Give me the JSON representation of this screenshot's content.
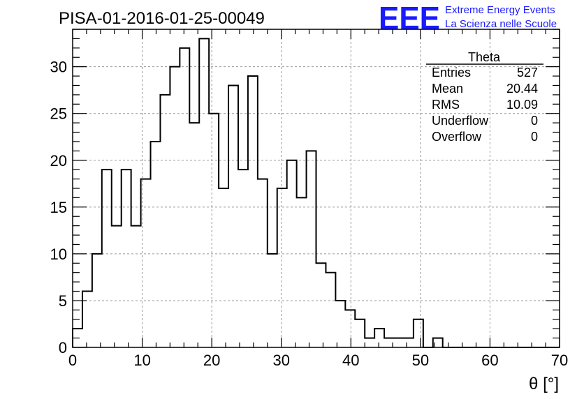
{
  "chart_data": {
    "type": "bar",
    "title": "PISA-01-2016-01-25-00049",
    "xlabel": "θ [°]",
    "ylabel": "",
    "xlim": [
      0,
      70
    ],
    "ylim": [
      0,
      34
    ],
    "grid": true,
    "bin_width": 1.4,
    "values": [
      2,
      6,
      10,
      19,
      13,
      19,
      13,
      18,
      22,
      27,
      30,
      32,
      24,
      33,
      25,
      17,
      28,
      19,
      29,
      18,
      10,
      17,
      20,
      16,
      21,
      9,
      8,
      5,
      4,
      3,
      1,
      2,
      1,
      1,
      1,
      3,
      0,
      1,
      0,
      0,
      0,
      0,
      0,
      0,
      0,
      0,
      0,
      0,
      0,
      0
    ],
    "x_ticks": [
      0,
      10,
      20,
      30,
      40,
      50,
      60,
      70
    ],
    "y_ticks": [
      0,
      5,
      10,
      15,
      20,
      25,
      30
    ],
    "legend": "top-right"
  },
  "stats": {
    "name": "Theta",
    "rows": [
      {
        "label": "Entries",
        "value": "527"
      },
      {
        "label": "Mean",
        "value": "20.44"
      },
      {
        "label": "RMS",
        "value": "10.09"
      },
      {
        "label": "Underflow",
        "value": "0"
      },
      {
        "label": "Overflow",
        "value": "0"
      }
    ]
  },
  "logo": {
    "mark": "EEE",
    "line1": "Extreme Energy Events",
    "line2": "La Scienza nelle Scuole",
    "color": "#1a1aff"
  }
}
